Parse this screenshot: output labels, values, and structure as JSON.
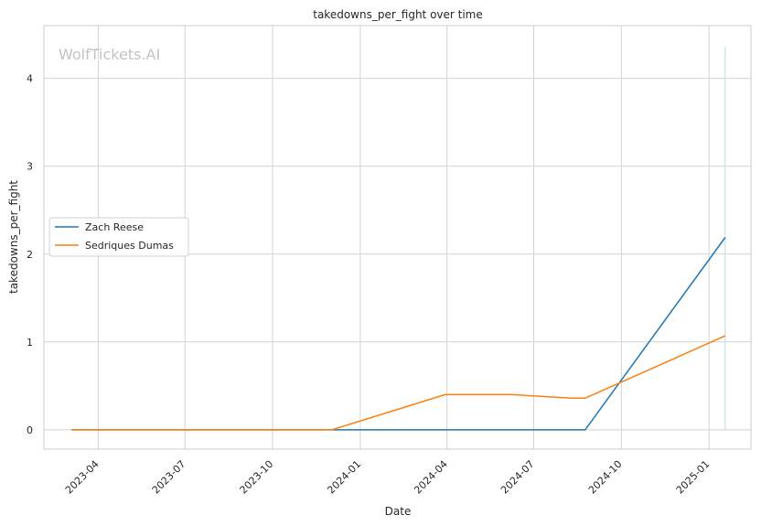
{
  "chart_data": {
    "type": "line",
    "title": "takedowns_per_fight over time",
    "xlabel": "Date",
    "ylabel": "takedowns_per_fight",
    "watermark": "WolfTickets.AI",
    "xlim": [
      "2023-02-03",
      "2025-02-14"
    ],
    "ylim": [
      -0.22,
      4.6
    ],
    "x_ticks": [
      "2023-04",
      "2023-07",
      "2023-10",
      "2024-01",
      "2024-04",
      "2024-07",
      "2024-10",
      "2025-01"
    ],
    "y_ticks": [
      0,
      1,
      2,
      3,
      4
    ],
    "grid": true,
    "legend_position": "center-left",
    "series": [
      {
        "name": "Zach Reese",
        "color": "#1f77b4",
        "points": [
          {
            "x": "2023-03-04",
            "y": 0
          },
          {
            "x": "2024-08-24",
            "y": 0
          },
          {
            "x": "2025-01-18",
            "y": 2.19
          }
        ]
      },
      {
        "name": "Sedriques Dumas",
        "color": "#ff7f0e",
        "points": [
          {
            "x": "2023-03-04",
            "y": 0
          },
          {
            "x": "2023-12-02",
            "y": 0
          },
          {
            "x": "2024-03-30",
            "y": 0.4
          },
          {
            "x": "2024-06-08",
            "y": 0.4
          },
          {
            "x": "2024-08-10",
            "y": 0.36
          },
          {
            "x": "2024-08-24",
            "y": 0.36
          },
          {
            "x": "2025-01-18",
            "y": 1.07
          }
        ]
      }
    ],
    "marker_line": {
      "x": "2025-01-18",
      "ymax": 4.36,
      "color": "#b9dede"
    }
  }
}
